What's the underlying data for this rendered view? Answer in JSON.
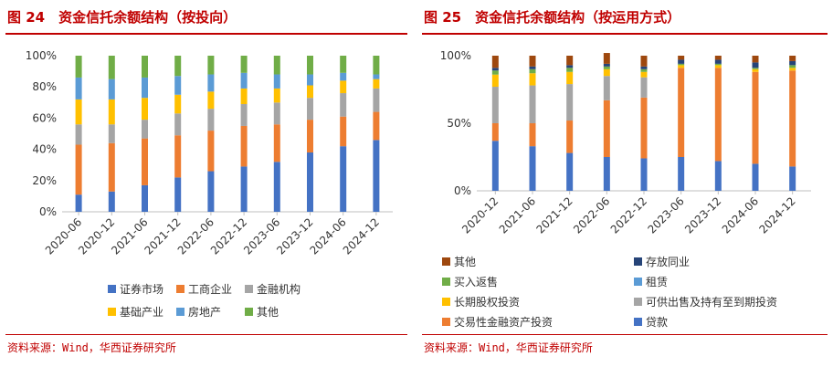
{
  "left": {
    "figure_title": "图 24　资金信托余额结构（按投向）",
    "source": "资料来源：Wind，华西证券研究所"
  },
  "right": {
    "figure_title": "图 25　资金信托余额结构（按运用方式）",
    "source": "资料来源：Wind，华西证券研究所"
  },
  "chart_data": [
    {
      "type": "bar",
      "stacked": true,
      "title": "资金信托余额结构（按投向）",
      "categories": [
        "2020-06",
        "2020-12",
        "2021-06",
        "2021-12",
        "2022-06",
        "2022-12",
        "2023-06",
        "2023-12",
        "2024-06",
        "2024-12"
      ],
      "ylim": [
        0,
        100
      ],
      "yticks": [
        "0%",
        "20%",
        "40%",
        "60%",
        "80%",
        "100%"
      ],
      "legend_position": "bottom",
      "series": [
        {
          "name": "证券市场",
          "color": "#4472c4",
          "values": [
            11,
            13,
            17,
            22,
            26,
            29,
            32,
            38,
            42,
            46
          ]
        },
        {
          "name": "工商企业",
          "color": "#ed7d31",
          "values": [
            32,
            31,
            30,
            27,
            26,
            26,
            24,
            21,
            19,
            18
          ]
        },
        {
          "name": "金融机构",
          "color": "#a5a5a5",
          "values": [
            13,
            12,
            12,
            14,
            14,
            14,
            14,
            14,
            15,
            15
          ]
        },
        {
          "name": "基础产业",
          "color": "#ffc000",
          "values": [
            16,
            16,
            14,
            12,
            11,
            10,
            9,
            8,
            8,
            6
          ]
        },
        {
          "name": "房地产",
          "color": "#5b9bd5",
          "values": [
            14,
            13,
            13,
            12,
            11,
            10,
            9,
            7,
            5,
            3
          ]
        },
        {
          "name": "其他",
          "color": "#70ad47",
          "values": [
            14,
            15,
            14,
            13,
            12,
            11,
            12,
            12,
            11,
            12
          ]
        }
      ]
    },
    {
      "type": "bar",
      "stacked": true,
      "title": "资金信托余额结构（按运用方式）",
      "categories": [
        "2020-12",
        "2021-06",
        "2021-12",
        "2022-06",
        "2022-12",
        "2023-06",
        "2023-12",
        "2024-06",
        "2024-12"
      ],
      "ylim": [
        0,
        100
      ],
      "yticks": [
        "0%",
        "50%",
        "100%"
      ],
      "legend_position": "bottom",
      "series": [
        {
          "name": "贷款",
          "color": "#4472c4",
          "values": [
            37,
            33,
            28,
            25,
            24,
            25,
            22,
            20,
            18
          ]
        },
        {
          "name": "交易性金融资产投资",
          "color": "#ed7d31",
          "values": [
            13,
            17,
            24,
            42,
            45,
            66,
            69,
            68,
            71
          ]
        },
        {
          "name": "可供出售及持有至到期投资",
          "color": "#a5a5a5",
          "values": [
            27,
            28,
            27,
            18,
            15,
            0,
            0,
            0,
            0
          ]
        },
        {
          "name": "长期股权投资",
          "color": "#ffc000",
          "values": [
            9,
            9,
            9,
            5,
            4,
            2,
            2,
            2,
            2
          ]
        },
        {
          "name": "租赁",
          "color": "#5b9bd5",
          "values": [
            0,
            0,
            0,
            0,
            0,
            0,
            0,
            0,
            0
          ]
        },
        {
          "name": "买入返售",
          "color": "#70ad47",
          "values": [
            3,
            3,
            3,
            2,
            2,
            1,
            1,
            1,
            2
          ]
        },
        {
          "name": "存放同业",
          "color": "#264478",
          "values": [
            2,
            2,
            2,
            2,
            2,
            3,
            3,
            4,
            3
          ]
        },
        {
          "name": "其他",
          "color": "#9e480e",
          "values": [
            9,
            8,
            7,
            8,
            8,
            3,
            3,
            5,
            4
          ]
        }
      ]
    }
  ]
}
